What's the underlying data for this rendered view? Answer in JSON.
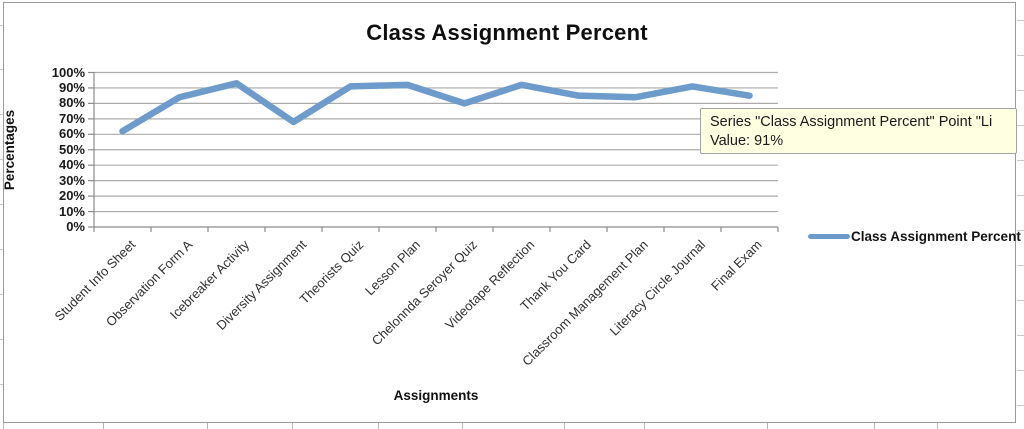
{
  "chart_data": {
    "type": "line",
    "title": "Class Assignment Percent",
    "xlabel": "Assignments",
    "ylabel": "Percentages",
    "categories": [
      "Student Info Sheet",
      "Observation Form A",
      "Icebreaker Activity",
      "Diversity Assignment",
      "Theorists Quiz",
      "Lesson Plan",
      "Chelonnda Seroyer Quiz",
      "Videotape Reflection",
      "Thank You Card",
      "Classroom Management Plan",
      "Literacy Circle Journal",
      "Final Exam"
    ],
    "series": [
      {
        "name": "Class Assignment Percent",
        "values": [
          62,
          84,
          93,
          68,
          91,
          92,
          80,
          92,
          85,
          84,
          91,
          85
        ],
        "color": "#6D9BCC"
      }
    ],
    "ylim": [
      0,
      100
    ],
    "ytick_labels": [
      "0%",
      "10%",
      "20%",
      "30%",
      "40%",
      "50%",
      "60%",
      "70%",
      "80%",
      "90%",
      "100%"
    ],
    "grid": true,
    "legend_position": "right",
    "gridline_color": "#ABABAB",
    "axis_color": "#8c8c8c"
  },
  "tooltip": {
    "line1": "Series \"Class Assignment Percent\" Point \"Li",
    "line2": "Value: 91%",
    "background": "#FFFFE1"
  }
}
